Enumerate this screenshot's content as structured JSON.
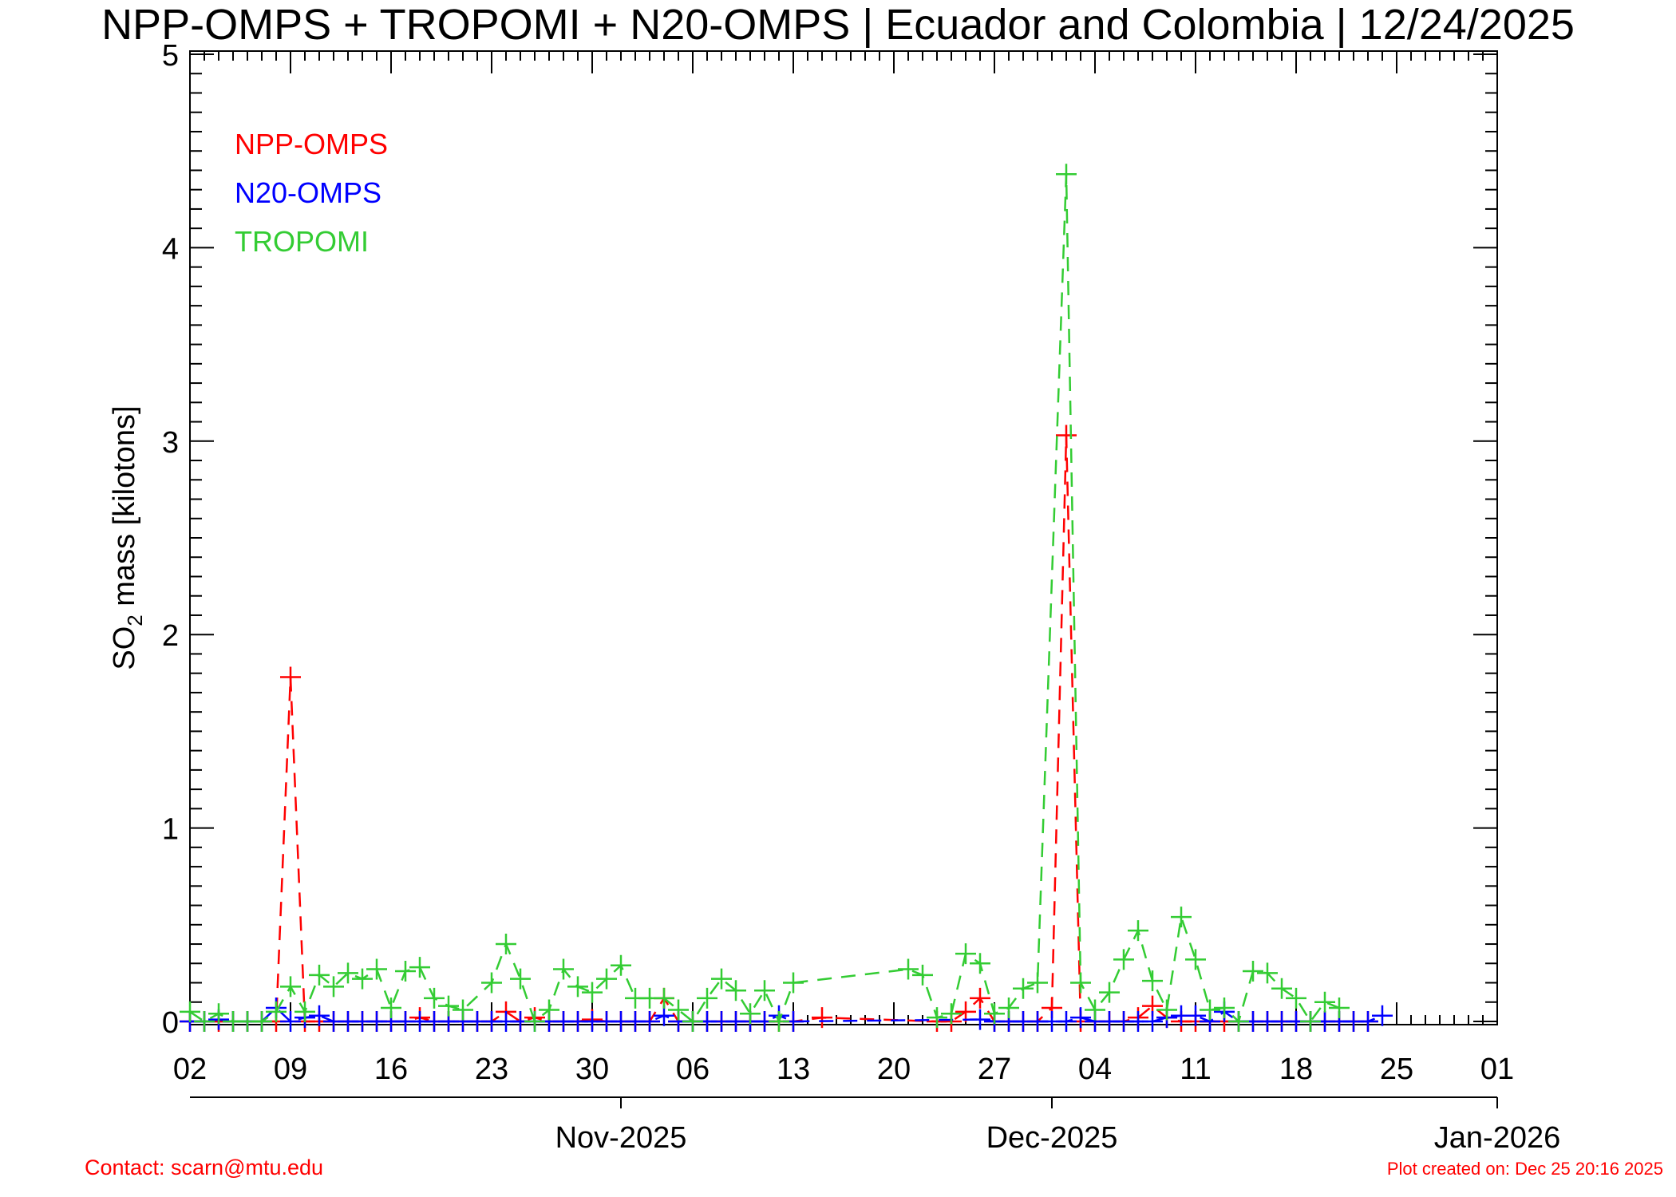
{
  "title": "NPP-OMPS + TROPOMI + N20-OMPS | Ecuador and Colombia | 12/24/2025",
  "footer": {
    "contact": "Contact: scarn@mtu.edu",
    "created": "Plot created on: Dec 25 20:16 2025"
  },
  "chart_data": {
    "type": "line",
    "title": "NPP-OMPS + TROPOMI + N20-OMPS | Ecuador and Colombia | 12/24/2025",
    "ylabel_main": "SO",
    "ylabel_sub": "2",
    "ylabel_rest": " mass [kilotons]",
    "ylim": [
      0,
      5
    ],
    "yticks": [
      "0",
      "1",
      "2",
      "3",
      "4",
      "5"
    ],
    "xlim": [
      "2025-10-02",
      "2026-01-01"
    ],
    "x_day_ticks": [
      {
        "date": "2025-10-02",
        "label": "02"
      },
      {
        "date": "2025-10-09",
        "label": "09"
      },
      {
        "date": "2025-10-16",
        "label": "16"
      },
      {
        "date": "2025-10-23",
        "label": "23"
      },
      {
        "date": "2025-10-30",
        "label": "30"
      },
      {
        "date": "2025-11-06",
        "label": "06"
      },
      {
        "date": "2025-11-13",
        "label": "13"
      },
      {
        "date": "2025-11-20",
        "label": "20"
      },
      {
        "date": "2025-11-27",
        "label": "27"
      },
      {
        "date": "2025-12-04",
        "label": "04"
      },
      {
        "date": "2025-12-11",
        "label": "11"
      },
      {
        "date": "2025-12-18",
        "label": "18"
      },
      {
        "date": "2025-12-25",
        "label": "25"
      },
      {
        "date": "2026-01-01",
        "label": "01"
      }
    ],
    "x_month_ticks": [
      {
        "date": "2025-11-01",
        "label": "Nov-2025"
      },
      {
        "date": "2025-12-01",
        "label": "Dec-2025"
      },
      {
        "date": "2026-01-01",
        "label": "Jan-2026"
      }
    ],
    "legend": {
      "position": "top-left"
    },
    "series": [
      {
        "name": "NPP-OMPS",
        "color": "#ff0000",
        "marker": "plus",
        "linestyle": "dashed",
        "points": [
          [
            "2025-10-02",
            0.0
          ],
          [
            "2025-10-03",
            0.0
          ],
          [
            "2025-10-04",
            0.0
          ],
          [
            "2025-10-05",
            0.0
          ],
          [
            "2025-10-06",
            0.0
          ],
          [
            "2025-10-07",
            0.0
          ],
          [
            "2025-10-08",
            0.0
          ],
          [
            "2025-10-09",
            1.78
          ],
          [
            "2025-10-10",
            0.0
          ],
          [
            "2025-10-11",
            0.0
          ],
          [
            "2025-10-12",
            0.0
          ],
          [
            "2025-10-13",
            0.0
          ],
          [
            "2025-10-14",
            0.0
          ],
          [
            "2025-10-15",
            0.0
          ],
          [
            "2025-10-16",
            0.0
          ],
          [
            "2025-10-17",
            0.0
          ],
          [
            "2025-10-18",
            0.02
          ],
          [
            "2025-10-19",
            0.0
          ],
          [
            "2025-10-20",
            0.0
          ],
          [
            "2025-10-21",
            0.0
          ],
          [
            "2025-10-22",
            0.0
          ],
          [
            "2025-10-23",
            0.0
          ],
          [
            "2025-10-24",
            0.05
          ],
          [
            "2025-10-25",
            0.0
          ],
          [
            "2025-10-26",
            0.02
          ],
          [
            "2025-10-27",
            0.0
          ],
          [
            "2025-10-28",
            0.0
          ],
          [
            "2025-10-29",
            0.0
          ],
          [
            "2025-10-30",
            0.01
          ],
          [
            "2025-10-31",
            0.0
          ],
          [
            "2025-11-01",
            0.0
          ],
          [
            "2025-11-02",
            0.0
          ],
          [
            "2025-11-03",
            0.0
          ],
          [
            "2025-11-04",
            0.12
          ],
          [
            "2025-11-05",
            0.0
          ],
          [
            "2025-11-06",
            0.0
          ],
          [
            "2025-11-07",
            0.0
          ],
          [
            "2025-11-08",
            0.0
          ],
          [
            "2025-11-09",
            0.0
          ],
          [
            "2025-11-10",
            0.0
          ],
          [
            "2025-11-11",
            0.0
          ],
          [
            "2025-11-12",
            0.0
          ],
          [
            "2025-11-13",
            0.0
          ],
          [
            "2025-11-15",
            0.02
          ],
          [
            "2025-11-23",
            0.0
          ],
          [
            "2025-11-24",
            0.0
          ],
          [
            "2025-11-25",
            0.05
          ],
          [
            "2025-11-26",
            0.12
          ],
          [
            "2025-11-27",
            0.0
          ],
          [
            "2025-11-28",
            0.0
          ],
          [
            "2025-11-29",
            0.0
          ],
          [
            "2025-11-30",
            0.0
          ],
          [
            "2025-12-01",
            0.07
          ],
          [
            "2025-12-02",
            3.03
          ],
          [
            "2025-12-03",
            0.0
          ],
          [
            "2025-12-04",
            0.0
          ],
          [
            "2025-12-05",
            0.0
          ],
          [
            "2025-12-06",
            0.0
          ],
          [
            "2025-12-07",
            0.02
          ],
          [
            "2025-12-08",
            0.08
          ],
          [
            "2025-12-09",
            0.02
          ],
          [
            "2025-12-10",
            0.0
          ],
          [
            "2025-12-11",
            0.0
          ],
          [
            "2025-12-12",
            0.0
          ],
          [
            "2025-12-13",
            0.0
          ],
          [
            "2025-12-14",
            0.0
          ],
          [
            "2025-12-15",
            0.0
          ],
          [
            "2025-12-16",
            0.0
          ],
          [
            "2025-12-17",
            0.0
          ],
          [
            "2025-12-18",
            0.0
          ],
          [
            "2025-12-19",
            0.0
          ],
          [
            "2025-12-20",
            0.0
          ],
          [
            "2025-12-21",
            0.0
          ],
          [
            "2025-12-22",
            0.0
          ],
          [
            "2025-12-23",
            0.0
          ]
        ]
      },
      {
        "name": "N20-OMPS",
        "color": "#0000ff",
        "marker": "plus",
        "linestyle": "dashed",
        "points": [
          [
            "2025-10-02",
            0.0
          ],
          [
            "2025-10-03",
            0.0
          ],
          [
            "2025-10-04",
            0.01
          ],
          [
            "2025-10-05",
            0.0
          ],
          [
            "2025-10-06",
            0.0
          ],
          [
            "2025-10-07",
            0.0
          ],
          [
            "2025-10-08",
            0.07
          ],
          [
            "2025-10-09",
            0.0
          ],
          [
            "2025-10-10",
            0.02
          ],
          [
            "2025-10-11",
            0.03
          ],
          [
            "2025-10-12",
            0.0
          ],
          [
            "2025-10-13",
            0.0
          ],
          [
            "2025-10-14",
            0.0
          ],
          [
            "2025-10-15",
            0.0
          ],
          [
            "2025-10-16",
            0.0
          ],
          [
            "2025-10-17",
            0.0
          ],
          [
            "2025-10-18",
            0.0
          ],
          [
            "2025-10-19",
            0.0
          ],
          [
            "2025-10-20",
            0.0
          ],
          [
            "2025-10-21",
            0.0
          ],
          [
            "2025-10-22",
            0.0
          ],
          [
            "2025-10-23",
            0.0
          ],
          [
            "2025-10-24",
            0.0
          ],
          [
            "2025-10-25",
            0.0
          ],
          [
            "2025-10-26",
            0.0
          ],
          [
            "2025-10-27",
            0.0
          ],
          [
            "2025-10-28",
            0.0
          ],
          [
            "2025-10-29",
            0.0
          ],
          [
            "2025-10-30",
            0.0
          ],
          [
            "2025-10-31",
            0.0
          ],
          [
            "2025-11-01",
            0.0
          ],
          [
            "2025-11-02",
            0.0
          ],
          [
            "2025-11-03",
            0.0
          ],
          [
            "2025-11-04",
            0.03
          ],
          [
            "2025-11-05",
            0.0
          ],
          [
            "2025-11-06",
            0.0
          ],
          [
            "2025-11-07",
            0.0
          ],
          [
            "2025-11-08",
            0.0
          ],
          [
            "2025-11-09",
            0.0
          ],
          [
            "2025-11-10",
            0.0
          ],
          [
            "2025-11-11",
            0.0
          ],
          [
            "2025-11-12",
            0.03
          ],
          [
            "2025-11-13",
            0.0
          ],
          [
            "2025-11-26",
            0.01
          ],
          [
            "2025-11-27",
            0.0
          ],
          [
            "2025-11-28",
            0.0
          ],
          [
            "2025-11-29",
            0.0
          ],
          [
            "2025-11-30",
            0.0
          ],
          [
            "2025-12-01",
            0.0
          ],
          [
            "2025-12-02",
            0.0
          ],
          [
            "2025-12-03",
            0.02
          ],
          [
            "2025-12-04",
            0.0
          ],
          [
            "2025-12-05",
            0.0
          ],
          [
            "2025-12-06",
            0.0
          ],
          [
            "2025-12-07",
            0.0
          ],
          [
            "2025-12-08",
            0.0
          ],
          [
            "2025-12-09",
            0.02
          ],
          [
            "2025-12-10",
            0.03
          ],
          [
            "2025-12-11",
            0.03
          ],
          [
            "2025-12-12",
            0.0
          ],
          [
            "2025-12-13",
            0.05
          ],
          [
            "2025-12-14",
            0.0
          ],
          [
            "2025-12-15",
            0.0
          ],
          [
            "2025-12-16",
            0.0
          ],
          [
            "2025-12-17",
            0.0
          ],
          [
            "2025-12-18",
            0.0
          ],
          [
            "2025-12-19",
            0.0
          ],
          [
            "2025-12-20",
            0.0
          ],
          [
            "2025-12-21",
            0.0
          ],
          [
            "2025-12-22",
            0.0
          ],
          [
            "2025-12-23",
            0.0
          ],
          [
            "2025-12-24",
            0.03
          ]
        ]
      },
      {
        "name": "TROPOMI",
        "color": "#33cc33",
        "marker": "plus",
        "linestyle": "dashed",
        "points": [
          [
            "2025-10-02",
            0.05
          ],
          [
            "2025-10-03",
            0.0
          ],
          [
            "2025-10-04",
            0.04
          ],
          [
            "2025-10-05",
            0.0
          ],
          [
            "2025-10-06",
            0.0
          ],
          [
            "2025-10-07",
            0.0
          ],
          [
            "2025-10-08",
            0.05
          ],
          [
            "2025-10-09",
            0.18
          ],
          [
            "2025-10-10",
            0.05
          ],
          [
            "2025-10-11",
            0.24
          ],
          [
            "2025-10-12",
            0.18
          ],
          [
            "2025-10-13",
            0.25
          ],
          [
            "2025-10-14",
            0.22
          ],
          [
            "2025-10-15",
            0.27
          ],
          [
            "2025-10-16",
            0.07
          ],
          [
            "2025-10-17",
            0.26
          ],
          [
            "2025-10-18",
            0.28
          ],
          [
            "2025-10-19",
            0.12
          ],
          [
            "2025-10-20",
            0.08
          ],
          [
            "2025-10-21",
            0.06
          ],
          [
            "2025-10-23",
            0.2
          ],
          [
            "2025-10-24",
            0.4
          ],
          [
            "2025-10-25",
            0.22
          ],
          [
            "2025-10-26",
            0.0
          ],
          [
            "2025-10-27",
            0.06
          ],
          [
            "2025-10-28",
            0.27
          ],
          [
            "2025-10-29",
            0.18
          ],
          [
            "2025-10-30",
            0.15
          ],
          [
            "2025-10-31",
            0.22
          ],
          [
            "2025-11-01",
            0.29
          ],
          [
            "2025-11-02",
            0.12
          ],
          [
            "2025-11-03",
            0.12
          ],
          [
            "2025-11-04",
            0.12
          ],
          [
            "2025-11-05",
            0.06
          ],
          [
            "2025-11-06",
            0.0
          ],
          [
            "2025-11-07",
            0.12
          ],
          [
            "2025-11-08",
            0.22
          ],
          [
            "2025-11-09",
            0.16
          ],
          [
            "2025-11-10",
            0.04
          ],
          [
            "2025-11-11",
            0.16
          ],
          [
            "2025-11-12",
            0.0
          ],
          [
            "2025-11-13",
            0.2
          ],
          [
            "2025-11-21",
            0.27
          ],
          [
            "2025-11-22",
            0.24
          ],
          [
            "2025-11-23",
            0.02
          ],
          [
            "2025-11-24",
            0.04
          ],
          [
            "2025-11-25",
            0.35
          ],
          [
            "2025-11-26",
            0.3
          ],
          [
            "2025-11-27",
            0.04
          ],
          [
            "2025-11-28",
            0.07
          ],
          [
            "2025-11-29",
            0.17
          ],
          [
            "2025-11-30",
            0.2
          ],
          [
            "2025-12-02",
            4.38
          ],
          [
            "2025-12-03",
            0.2
          ],
          [
            "2025-12-04",
            0.06
          ],
          [
            "2025-12-05",
            0.15
          ],
          [
            "2025-12-06",
            0.32
          ],
          [
            "2025-12-07",
            0.47
          ],
          [
            "2025-12-08",
            0.21
          ],
          [
            "2025-12-09",
            0.06
          ],
          [
            "2025-12-10",
            0.54
          ],
          [
            "2025-12-11",
            0.32
          ],
          [
            "2025-12-12",
            0.06
          ],
          [
            "2025-12-13",
            0.07
          ],
          [
            "2025-12-14",
            0.0
          ],
          [
            "2025-12-15",
            0.26
          ],
          [
            "2025-12-16",
            0.25
          ],
          [
            "2025-12-17",
            0.17
          ],
          [
            "2025-12-18",
            0.12
          ],
          [
            "2025-12-19",
            0.0
          ],
          [
            "2025-12-20",
            0.1
          ],
          [
            "2025-12-21",
            0.07
          ]
        ]
      }
    ]
  }
}
